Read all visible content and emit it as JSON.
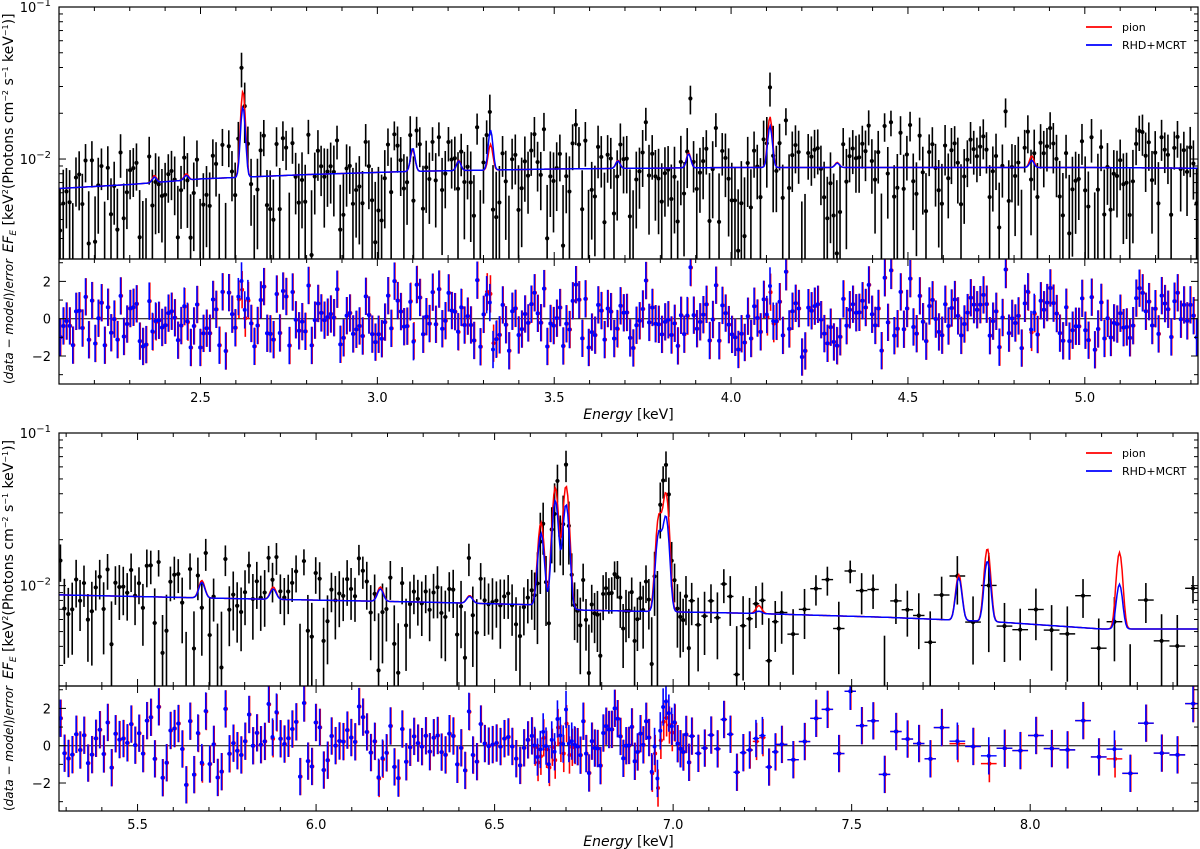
{
  "chart_data": [
    {
      "type": "scatter",
      "panel": "top-spectrum",
      "title": "",
      "xlabel": "Energy [keV]",
      "ylabel": "EF_E [keV^2(Photons cm^-2 s^-1 keV^-1)]",
      "y_scale": "log",
      "xlim": [
        2.1,
        5.32
      ],
      "ylim": [
        0.0022,
        0.1
      ],
      "xticks": [
        "2.5",
        "3.0",
        "3.5",
        "4.0",
        "4.5",
        "5.0"
      ],
      "yticks": [
        "10^-2",
        "10^-1"
      ],
      "legend_position": "top-right",
      "grid": false,
      "continuum_model": [
        {
          "x": 2.1,
          "y": 0.0064
        },
        {
          "x": 2.3,
          "y": 0.0068
        },
        {
          "x": 2.5,
          "y": 0.0074
        },
        {
          "x": 2.8,
          "y": 0.0079
        },
        {
          "x": 3.1,
          "y": 0.0083
        },
        {
          "x": 3.5,
          "y": 0.0086
        },
        {
          "x": 4.0,
          "y": 0.0088
        },
        {
          "x": 4.5,
          "y": 0.0088
        },
        {
          "x": 5.0,
          "y": 0.0088
        },
        {
          "x": 5.32,
          "y": 0.0087
        }
      ],
      "lines_pion": [
        {
          "x": 2.37,
          "y": 0.0078
        },
        {
          "x": 2.46,
          "y": 0.008
        },
        {
          "x": 2.62,
          "y": 0.028
        },
        {
          "x": 3.1,
          "y": 0.0115
        },
        {
          "x": 3.23,
          "y": 0.0098
        },
        {
          "x": 3.32,
          "y": 0.0125
        },
        {
          "x": 3.68,
          "y": 0.0098
        },
        {
          "x": 3.88,
          "y": 0.011
        },
        {
          "x": 4.11,
          "y": 0.019
        },
        {
          "x": 4.3,
          "y": 0.0095
        },
        {
          "x": 4.85,
          "y": 0.0105
        }
      ],
      "lines_rhd": [
        {
          "x": 2.37,
          "y": 0.0076
        },
        {
          "x": 2.46,
          "y": 0.0078
        },
        {
          "x": 2.62,
          "y": 0.022
        },
        {
          "x": 3.1,
          "y": 0.0118
        },
        {
          "x": 3.23,
          "y": 0.0097
        },
        {
          "x": 3.32,
          "y": 0.0155
        },
        {
          "x": 3.68,
          "y": 0.0097
        },
        {
          "x": 3.88,
          "y": 0.0108
        },
        {
          "x": 4.11,
          "y": 0.0165
        },
        {
          "x": 4.3,
          "y": 0.0094
        },
        {
          "x": 4.85,
          "y": 0.0098
        }
      ],
      "data_points": "≈340 binned observations with ±1σ error bars, scattered about the model continuum"
    },
    {
      "type": "scatter",
      "panel": "top-residuals",
      "ylabel": "(data − model)/error",
      "xlim": [
        2.1,
        5.32
      ],
      "ylim": [
        -3.5,
        3.2
      ],
      "yticks": [
        "-2",
        "0",
        "2"
      ],
      "reference_line": 0
    },
    {
      "type": "scatter",
      "panel": "bottom-spectrum",
      "title": "",
      "xlabel": "Energy [keV]",
      "ylabel": "EF_E [keV^2(Photons cm^-2 s^-1 keV^-1)]",
      "y_scale": "log",
      "xlim": [
        5.28,
        8.47
      ],
      "ylim": [
        0.0022,
        0.1
      ],
      "xticks": [
        "5.5",
        "6.0",
        "6.5",
        "7.0",
        "7.5",
        "8.0"
      ],
      "yticks": [
        "10^-2",
        "10^-1"
      ],
      "legend_position": "top-right",
      "grid": false,
      "continuum_model": [
        {
          "x": 5.28,
          "y": 0.0087
        },
        {
          "x": 5.8,
          "y": 0.0082
        },
        {
          "x": 6.3,
          "y": 0.0078
        },
        {
          "x": 6.6,
          "y": 0.0075
        },
        {
          "x": 6.75,
          "y": 0.0069
        },
        {
          "x": 7.2,
          "y": 0.0066
        },
        {
          "x": 7.6,
          "y": 0.0062
        },
        {
          "x": 7.9,
          "y": 0.0058
        },
        {
          "x": 8.2,
          "y": 0.0052
        },
        {
          "x": 8.47,
          "y": 0.0052
        }
      ],
      "lines_pion": [
        {
          "x": 5.68,
          "y": 0.0108
        },
        {
          "x": 5.88,
          "y": 0.0098
        },
        {
          "x": 6.18,
          "y": 0.0098
        },
        {
          "x": 6.43,
          "y": 0.0086
        },
        {
          "x": 6.63,
          "y": 0.026
        },
        {
          "x": 6.67,
          "y": 0.044
        },
        {
          "x": 6.7,
          "y": 0.045
        },
        {
          "x": 6.96,
          "y": 0.028
        },
        {
          "x": 6.98,
          "y": 0.04
        },
        {
          "x": 7.24,
          "y": 0.0074
        },
        {
          "x": 7.8,
          "y": 0.0118
        },
        {
          "x": 7.88,
          "y": 0.0175
        },
        {
          "x": 8.25,
          "y": 0.0165
        }
      ],
      "lines_rhd": [
        {
          "x": 5.68,
          "y": 0.0105
        },
        {
          "x": 5.88,
          "y": 0.0095
        },
        {
          "x": 6.18,
          "y": 0.0095
        },
        {
          "x": 6.43,
          "y": 0.0085
        },
        {
          "x": 6.63,
          "y": 0.022
        },
        {
          "x": 6.67,
          "y": 0.036
        },
        {
          "x": 6.7,
          "y": 0.034
        },
        {
          "x": 6.96,
          "y": 0.022
        },
        {
          "x": 6.98,
          "y": 0.028
        },
        {
          "x": 7.24,
          "y": 0.0068
        },
        {
          "x": 7.8,
          "y": 0.0112
        },
        {
          "x": 7.88,
          "y": 0.0145
        },
        {
          "x": 8.25,
          "y": 0.0102
        }
      ],
      "data_points": "≈230 binned observations with ±1σ error bars; bins widen above ~7.3 keV"
    },
    {
      "type": "scatter",
      "panel": "bottom-residuals",
      "ylabel": "(data − model)/error",
      "xlim": [
        5.28,
        8.47
      ],
      "ylim": [
        -3.5,
        3.2
      ],
      "yticks": [
        "-2",
        "0",
        "2"
      ],
      "reference_line": 0
    }
  ],
  "legend": {
    "pion_label": "pion",
    "rhd_label": "RHD+MCRT",
    "pion_color": "#ff0000",
    "rhd_color": "#0000ff",
    "data_color": "#000000"
  }
}
